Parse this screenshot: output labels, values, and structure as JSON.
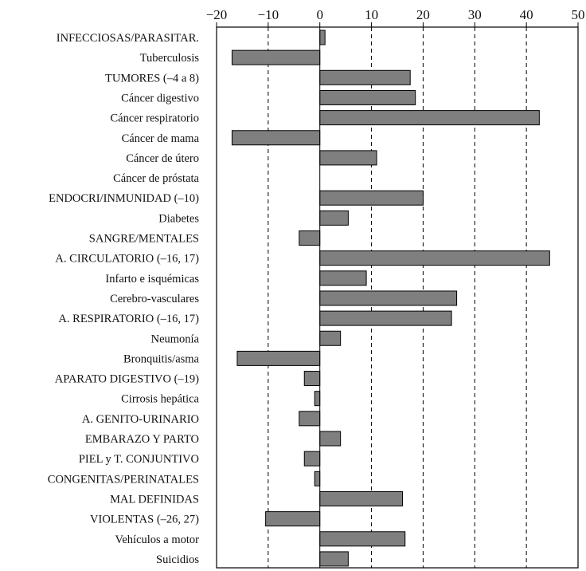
{
  "chart_data": {
    "type": "bar",
    "orientation": "horizontal",
    "title": "",
    "xlabel": "",
    "ylabel": "",
    "xlim": [
      -20,
      50
    ],
    "xticks": [
      -20,
      -10,
      0,
      10,
      20,
      30,
      40,
      50
    ],
    "xtick_labels": [
      "−20",
      "−10",
      "0",
      "10",
      "20",
      "30",
      "40",
      "50"
    ],
    "grid": "vertical dashed at −10, 10, 20, 30, 40",
    "categories": [
      "INFECCIOSAS/PARASITAR.",
      "Tuberculosis",
      "TUMORES (–4 a 8)",
      "Cáncer digestivo",
      "Cáncer respiratorio",
      "Cáncer de mama",
      "Cáncer de útero",
      "Cáncer de próstata",
      "ENDOCRI/INMUNIDAD (–10)",
      "Diabetes",
      "SANGRE/MENTALES",
      "A. CIRCULATORIO (–16, 17)",
      "Infarto e isquémicas",
      "Cerebro-vasculares",
      "A. RESPIRATORIO (–16, 17)",
      "Neumonía",
      "Bronquitis/asma",
      "APARATO DIGESTIVO (–19)",
      "Cirrosis hepática",
      "A. GENITO-URINARIO",
      "EMBARAZO Y PARTO",
      "PIEL y T. CONJUNTIVO",
      "CONGENITAS/PERINATALES",
      "MAL DEFINIDAS",
      "VIOLENTAS (–26, 27)",
      "Vehículos a motor",
      "Suicidios"
    ],
    "values": [
      1,
      -17,
      17.5,
      18.5,
      42.5,
      -17,
      11,
      0,
      20,
      5.5,
      -4,
      44.5,
      9,
      26.5,
      25.5,
      4,
      -16,
      -3,
      -1,
      -4,
      4,
      -3,
      -1,
      16,
      -10.5,
      16.5,
      5.5
    ]
  },
  "colors": {
    "bar_fill": "#7f7f7f",
    "bar_stroke": "#000000",
    "background": "#ffffff"
  }
}
